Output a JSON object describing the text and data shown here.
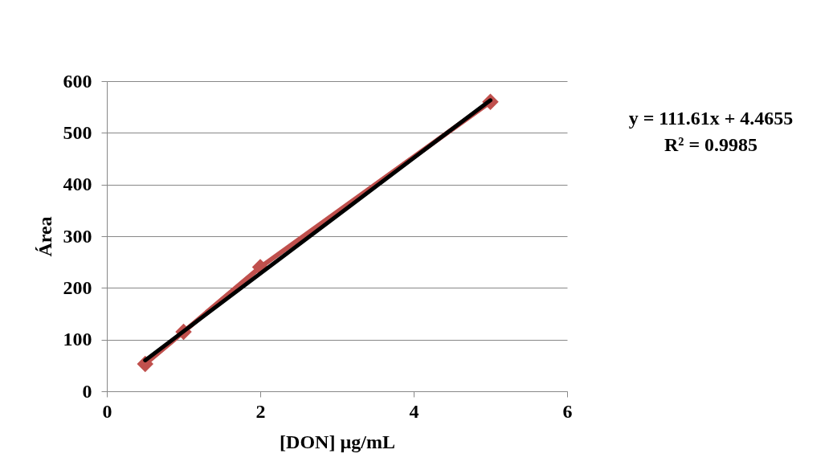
{
  "chart_data": {
    "type": "line",
    "xlabel": "[DON] µg/mL",
    "ylabel": "Área",
    "x": [
      0.5,
      1,
      2,
      5
    ],
    "series": [
      {
        "type": "line",
        "color": "#c0504d",
        "marker": "diamond",
        "values": [
          53,
          115,
          240,
          560
        ]
      },
      {
        "type": "line",
        "color": "#000000",
        "marker": "none",
        "x": [
          0.5,
          5
        ],
        "values": [
          60,
          563
        ]
      }
    ],
    "xlim": [
      0,
      6
    ],
    "xticks": [
      0,
      2,
      4,
      6
    ],
    "ylim": [
      0,
      600
    ],
    "yticks": [
      0,
      100,
      200,
      300,
      400,
      500,
      600
    ],
    "grid": "y",
    "annotations": [
      "y = 111.61x + 4.4655",
      "R² = 0.9985"
    ]
  }
}
